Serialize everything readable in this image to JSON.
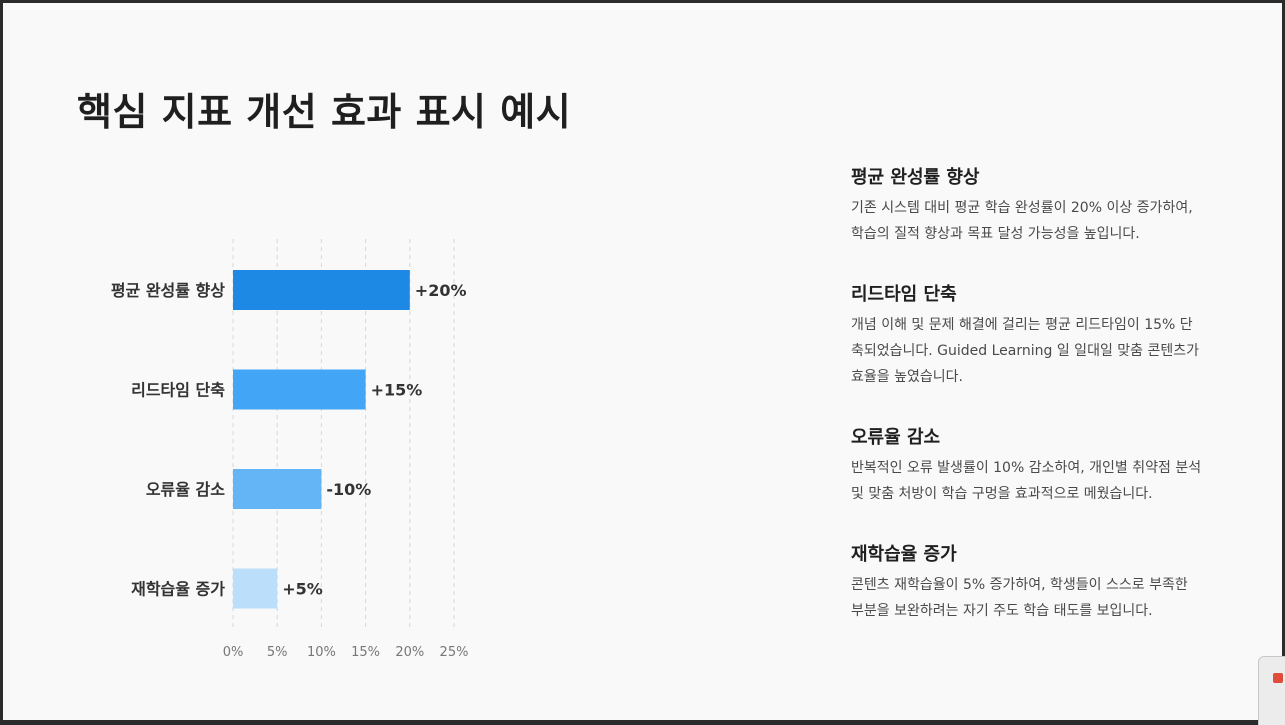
{
  "slide": {
    "title": "핵심 지표 개선 효과 표시 예시"
  },
  "chart_data": {
    "type": "bar",
    "orientation": "horizontal",
    "categories": [
      "평균 완성률 향상",
      "리드타임 단축",
      "오류율 감소",
      "재학습율 증가"
    ],
    "values": [
      20,
      15,
      10,
      5
    ],
    "data_labels": [
      "+20%",
      "+15%",
      "-10%",
      "+5%"
    ],
    "bar_colors": [
      "#1e88e5",
      "#42a5f5",
      "#64b5f6",
      "#bbdefb"
    ],
    "x_ticks": [
      0,
      5,
      10,
      15,
      20,
      25
    ],
    "x_tick_labels": [
      "0%",
      "5%",
      "10%",
      "15%",
      "20%",
      "25%"
    ],
    "xlim": [
      0,
      25
    ],
    "grid": "vertical-dashed",
    "legend": "none",
    "title": "",
    "xlabel": "",
    "ylabel": ""
  },
  "metrics": [
    {
      "title": "평균 완성률 향상",
      "description": "기존 시스템 대비 평균 학습 완성률이 20% 이상 증가하여, 학습의 질적 향상과 목표 달성 가능성을 높입니다."
    },
    {
      "title": "리드타임 단축",
      "description": "개념 이해 및 문제 해결에 걸리는 평균 리드타임이 15% 단축되었습니다. Guided Learning 일 일대일 맞춤 콘텐츠가 효율을 높였습니다."
    },
    {
      "title": "오류율 감소",
      "description": "반복적인 오류 발생률이 10% 감소하여, 개인별 취약점 분석 및 맞춤 처방이 학습 구멍을 효과적으로 메웠습니다."
    },
    {
      "title": "재학습율 증가",
      "description": "콘텐츠 재학습율이 5% 증가하여, 학생들이 스스로 부족한 부분을 보완하려는 자기 주도 학습 태도를 보입니다."
    }
  ]
}
